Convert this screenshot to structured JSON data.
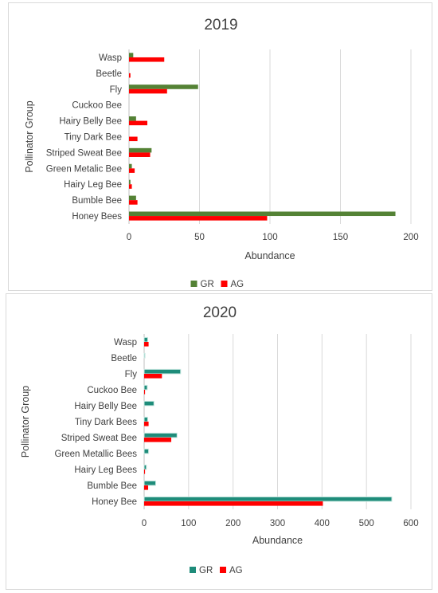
{
  "colors": {
    "gr_2019": "#548235",
    "gr_2020": "#1e8c7a",
    "gr_2020_edge": "#c9e8e2",
    "ag": "#ff0000",
    "grid": "#d9d9d9"
  },
  "chart_data": [
    {
      "type": "bar",
      "orientation": "horizontal",
      "title": "2019",
      "xlabel": "Abundance",
      "ylabel": "Pollinator Group",
      "categories": [
        "Wasp",
        "Beetle",
        "Fly",
        "Cuckoo Bee",
        "Hairy Belly Bee",
        "Tiny Dark Bee",
        "Striped Sweat Bee",
        "Green Metalic Bee",
        "Hairy Leg Bee",
        "Bumble Bee",
        "Honey Bees"
      ],
      "series": [
        {
          "name": "GR",
          "values": [
            3,
            0,
            49,
            0,
            5,
            0,
            16,
            2,
            1,
            5,
            189
          ]
        },
        {
          "name": "AG",
          "values": [
            25,
            1,
            27,
            0,
            13,
            6,
            15,
            4,
            2,
            6,
            98
          ]
        }
      ],
      "xlim": [
        0,
        200
      ],
      "xticks": [
        0,
        50,
        100,
        150,
        200
      ],
      "grid": true,
      "legend": "bottom"
    },
    {
      "type": "bar",
      "orientation": "horizontal",
      "title": "2020",
      "xlabel": "Abundance",
      "ylabel": "Pollinator Group",
      "categories": [
        "Wasp",
        "Beetle",
        "Fly",
        "Cuckoo Bee",
        "Hairy Belly Bee",
        "Tiny Dark Bees",
        "Striped Sweat Bee",
        "Green Metallic Bees",
        "Hairy Leg Bees",
        "Bumble Bee",
        "Honey Bee"
      ],
      "series": [
        {
          "name": "GR",
          "values": [
            8,
            2,
            82,
            7,
            22,
            8,
            74,
            10,
            5,
            26,
            557
          ]
        },
        {
          "name": "AG",
          "values": [
            10,
            0,
            40,
            2,
            0,
            10,
            61,
            0,
            2,
            9,
            402
          ]
        }
      ],
      "xlim": [
        0,
        600
      ],
      "xticks": [
        0,
        100,
        200,
        300,
        400,
        500,
        600
      ],
      "grid": true,
      "legend": "bottom"
    }
  ]
}
